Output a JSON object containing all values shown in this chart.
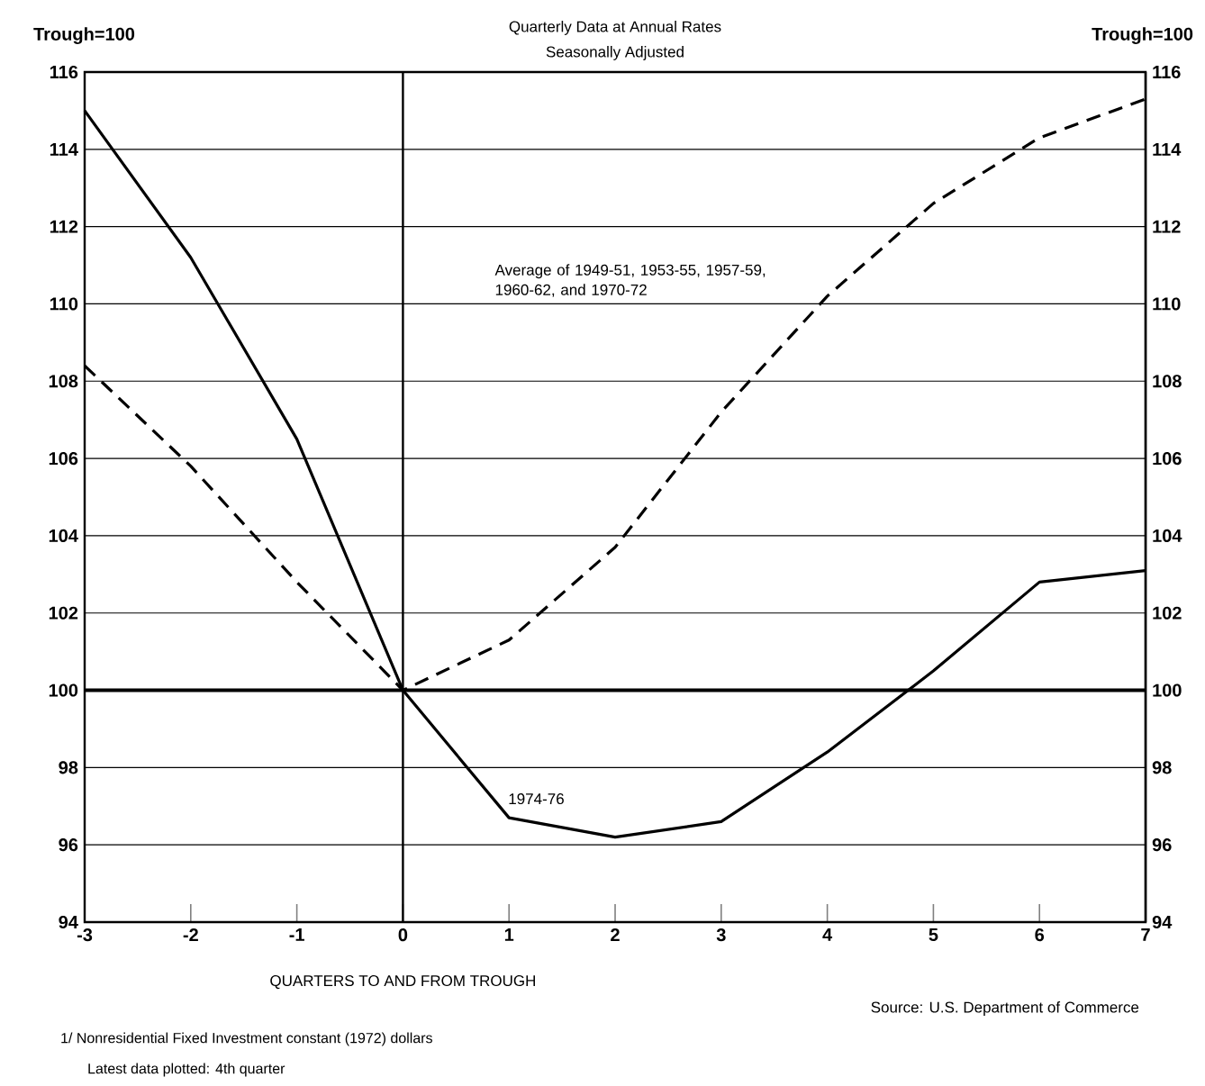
{
  "chart_data": {
    "type": "line",
    "title": "Quarterly Data at Annual Rates",
    "subtitle": "Seasonally Adjusted",
    "xlabel": "QUARTERS TO AND FROM TROUGH",
    "ylabel": "Trough=100",
    "y2label": "Trough=100",
    "x": [
      -3,
      -2,
      -1,
      0,
      1,
      2,
      3,
      4,
      5,
      6,
      7
    ],
    "series": [
      {
        "name": "1974-76",
        "color": "#000000",
        "line_style": "solid",
        "values": [
          115.0,
          111.2,
          106.5,
          100.0,
          96.7,
          96.2,
          96.6,
          98.4,
          100.5,
          102.8,
          103.1
        ]
      },
      {
        "name": "Average of 1949-51, 1953-55, 1957-59, 1960-62, and 1970-72",
        "color": "#000000",
        "line_style": "dashed",
        "values": [
          108.4,
          105.8,
          102.8,
          100.0,
          101.3,
          103.7,
          107.2,
          110.2,
          112.6,
          114.3,
          115.3
        ]
      }
    ],
    "xlim": [
      -3,
      7
    ],
    "xticks": [
      -3,
      -2,
      -1,
      0,
      1,
      2,
      3,
      4,
      5,
      6,
      7
    ],
    "ylim": [
      94,
      116
    ],
    "yticks": [
      94,
      96,
      98,
      100,
      102,
      104,
      106,
      108,
      110,
      112,
      114,
      116
    ],
    "y2lim": [
      94,
      116
    ],
    "y2ticks": [
      94,
      96,
      98,
      100,
      102,
      104,
      106,
      108,
      110,
      112,
      114,
      116
    ],
    "grid": "y",
    "marker": "none",
    "ref_lines": [
      {
        "axis": "x",
        "value": 0
      },
      {
        "axis": "y",
        "value": 100
      }
    ],
    "annotations": [
      "Source: U.S. Department of Commerce",
      "1/ Nonresidential Fixed Investment constant (1972) dollars",
      "Latest data plotted: 4th quarter"
    ]
  }
}
